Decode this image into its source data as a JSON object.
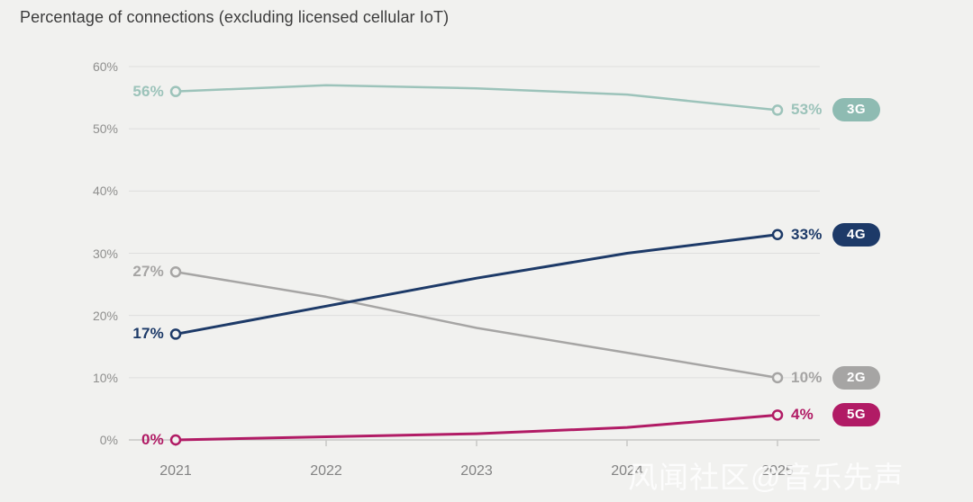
{
  "page": {
    "title": "Percentage of connections (excluding licensed cellular IoT)",
    "watermark": "风闻社区@音乐先声"
  },
  "colors": {
    "background": "#f1f1ef",
    "gridline": "#dededd",
    "axis_line": "#c8c8c6",
    "y_tick_text": "#8f8f8e",
    "x_tick_text": "#838383",
    "title_text": "#3c3c3c",
    "teal_3g": "#9cc3ba",
    "teal_3g_badge": "#8ebbb2",
    "navy_4g": "#1d3a68",
    "gray_2g": "#a6a5a4",
    "magenta_5g": "#b11b65"
  },
  "chart_data": {
    "type": "line",
    "title": "Percentage of connections (excluding licensed cellular IoT)",
    "x": [
      2021,
      2022,
      2023,
      2024,
      2025
    ],
    "x_tick_labels": [
      "2021",
      "2022",
      "2023",
      "2024",
      "2025"
    ],
    "ylim": [
      0,
      60
    ],
    "y_ticks": [
      0,
      10,
      20,
      30,
      40,
      50,
      60
    ],
    "y_tick_suffix": "%",
    "grid": "horizontal-only",
    "legend_position": "right-badges",
    "marker_style": "open-circle-endpoints-only",
    "series": [
      {
        "name": "3G",
        "values": [
          56,
          57,
          56.5,
          55.5,
          53
        ],
        "start_label": "56%",
        "end_label": "53%",
        "color": "#9cc3ba",
        "badge_color": "#8ebbb2",
        "line_width": 2.5
      },
      {
        "name": "2G",
        "values": [
          27,
          23,
          18,
          14,
          10
        ],
        "start_label": "27%",
        "end_label": "10%",
        "color": "#a6a5a4",
        "badge_color": "#a6a5a4",
        "line_width": 2.5
      },
      {
        "name": "4G",
        "values": [
          17,
          21.5,
          26,
          30,
          33
        ],
        "start_label": "17%",
        "end_label": "33%",
        "color": "#1d3a68",
        "badge_color": "#1d3a68",
        "line_width": 3
      },
      {
        "name": "5G",
        "values": [
          0,
          0.5,
          1,
          2,
          4
        ],
        "start_label": "0%",
        "end_label": "4%",
        "color": "#b11b65",
        "badge_color": "#b11b65",
        "line_width": 3
      }
    ]
  }
}
